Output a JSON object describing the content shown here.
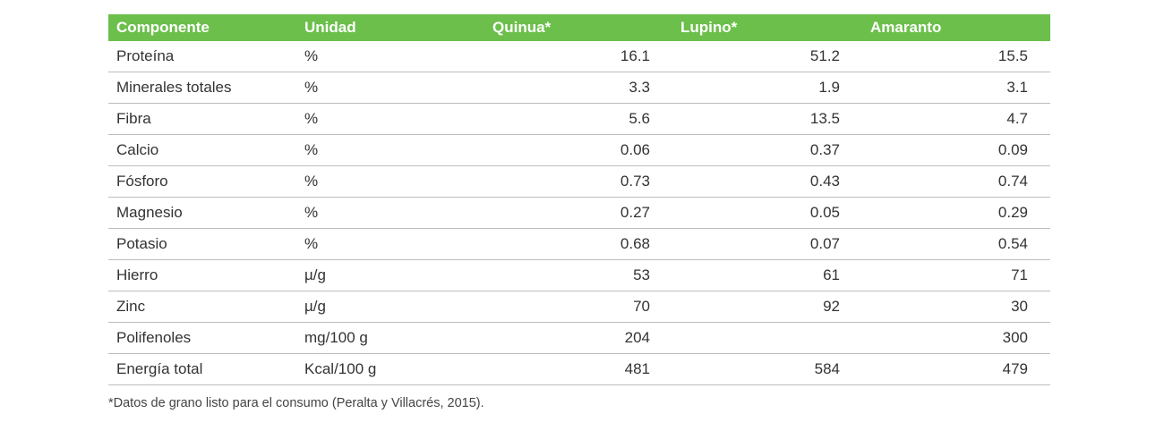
{
  "table": {
    "header": [
      "Componente",
      "Unidad",
      "Quinua*",
      "Lupino*",
      "Amaranto"
    ],
    "rows": [
      [
        "Proteína",
        "%",
        "16.1",
        "51.2",
        "15.5"
      ],
      [
        "Minerales totales",
        "%",
        "3.3",
        "1.9",
        "3.1"
      ],
      [
        "Fibra",
        "%",
        "5.6",
        "13.5",
        "4.7"
      ],
      [
        "Calcio",
        "%",
        "0.06",
        "0.37",
        "0.09"
      ],
      [
        "Fósforo",
        "%",
        "0.73",
        "0.43",
        "0.74"
      ],
      [
        "Magnesio",
        "%",
        "0.27",
        "0.05",
        "0.29"
      ],
      [
        "Potasio",
        "%",
        "0.68",
        "0.07",
        "0.54"
      ],
      [
        "Hierro",
        "µ/g",
        "53",
        "61",
        "71"
      ],
      [
        "Zinc",
        "µ/g",
        "70",
        "92",
        "30"
      ],
      [
        "Polifenoles",
        "mg/100 g",
        "204",
        null,
        "300"
      ],
      [
        "Energía total",
        "Kcal/100 g",
        "481",
        "584",
        "479"
      ]
    ],
    "footnote": "*Datos de grano listo para el consumo (Peralta y Villacrés, 2015)."
  }
}
